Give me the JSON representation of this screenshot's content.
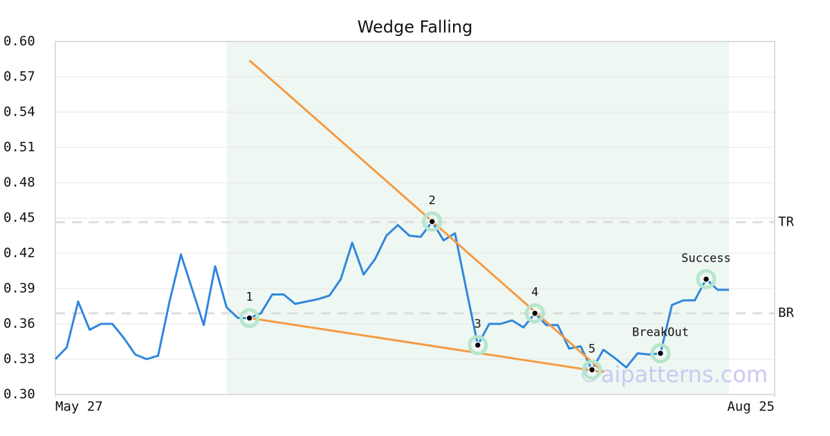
{
  "chart_data": {
    "type": "line",
    "title": "Wedge Falling",
    "x": [
      0,
      1,
      2,
      3,
      4,
      5,
      6,
      7,
      8,
      9,
      10,
      11,
      12,
      13,
      14,
      15,
      16,
      17,
      18,
      19,
      20,
      21,
      22,
      23,
      24,
      25,
      26,
      27,
      28,
      29,
      30,
      31,
      32,
      33,
      34,
      35,
      36,
      37,
      38,
      39,
      40,
      41,
      42,
      43,
      44,
      45,
      46,
      47,
      48,
      49,
      50,
      51,
      52,
      53,
      54,
      55,
      56,
      57,
      58,
      59
    ],
    "xlim": [
      0,
      63
    ],
    "xticks": [
      {
        "value": 0,
        "label": "May 27"
      },
      {
        "value": 63,
        "label": "Aug 25"
      }
    ],
    "ylim": [
      0.3,
      0.6
    ],
    "yticks": [
      {
        "value": 0.3,
        "label": "0.30"
      },
      0.33,
      0.36,
      0.39,
      0.42,
      0.45,
      0.48,
      0.51,
      0.54,
      0.57,
      {
        "value": 0.6,
        "label": "0.60"
      }
    ],
    "grid": true,
    "series": [
      {
        "color": "#2e86de",
        "values": [
          0.33,
          0.34,
          0.379,
          0.355,
          0.36,
          0.36,
          0.348,
          0.334,
          0.33,
          0.333,
          0.379,
          0.419,
          0.389,
          0.359,
          0.409,
          0.374,
          0.365,
          0.365,
          0.369,
          0.385,
          0.385,
          0.377,
          0.379,
          0.381,
          0.384,
          0.398,
          0.429,
          0.402,
          0.415,
          0.435,
          0.444,
          0.435,
          0.434,
          0.447,
          0.431,
          0.437,
          0.389,
          0.342,
          0.36,
          0.36,
          0.363,
          0.357,
          0.369,
          0.359,
          0.359,
          0.339,
          0.341,
          0.321,
          0.338,
          0.331,
          0.323,
          0.335,
          0.334,
          0.335,
          0.376,
          0.38,
          0.38,
          0.398,
          0.389,
          0.389
        ]
      }
    ],
    "shaded_region": {
      "x": [
        15,
        59
      ],
      "color": "#eef7f2"
    },
    "levels": [
      {
        "label": "TR",
        "value": 0.4465
      },
      {
        "label": "BR",
        "value": 0.369
      }
    ],
    "trendlines": [
      {
        "x": [
          17,
          48
        ],
        "values": [
          0.584,
          0.319
        ],
        "color": "#f59a42"
      },
      {
        "x": [
          17,
          48
        ],
        "values": [
          0.365,
          0.319
        ],
        "color": "#f59a42"
      }
    ],
    "points": [
      {
        "label": "1",
        "x": 17,
        "value": 0.365
      },
      {
        "label": "2",
        "x": 33,
        "value": 0.447
      },
      {
        "label": "3",
        "x": 37,
        "value": 0.342
      },
      {
        "label": "4",
        "x": 42,
        "value": 0.369
      },
      {
        "label": "5",
        "x": 47,
        "value": 0.321
      },
      {
        "label": "BreakOut",
        "x": 53,
        "value": 0.335
      },
      {
        "label": "Success",
        "x": 57,
        "value": 0.398
      }
    ],
    "watermark": "©aipatterns.com"
  }
}
